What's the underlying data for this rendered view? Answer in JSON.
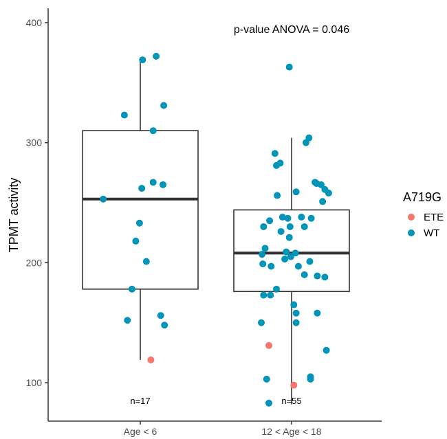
{
  "chart_data": {
    "type": "boxplot",
    "title": "",
    "ylabel": "TPMT activity",
    "xlabel": "",
    "ylim": [
      68,
      412
    ],
    "yticks": [
      100,
      200,
      300,
      400
    ],
    "categories": [
      "Age < 6",
      "12 < Age < 18"
    ],
    "annotation": "p-value ANOVA = 0.046",
    "group_counts": [
      "n=17",
      "n=55"
    ],
    "boxes": [
      {
        "category": "Age < 6",
        "whisker_low": 119,
        "q1": 178,
        "median": 253,
        "q3": 310,
        "whisker_high": 371
      },
      {
        "category": "12 < Age < 18",
        "whisker_low": 82,
        "q1": 176,
        "median": 208,
        "q3": 244,
        "whisker_high": 304
      }
    ],
    "legend": {
      "title": "A719G",
      "position": "right",
      "entries": [
        {
          "label": "ETE",
          "color": "#F8766D"
        },
        {
          "label": "WT",
          "color": "#0094B8"
        }
      ]
    },
    "series": [
      {
        "name": "ETE",
        "points": [
          {
            "x": 0.14,
            "y": 119
          },
          {
            "x": 1.7,
            "y": 131
          },
          {
            "x": 2.03,
            "y": 98
          }
        ]
      },
      {
        "name": "WT",
        "points": [
          {
            "x": 0.03,
            "y": 369
          },
          {
            "x": 0.21,
            "y": 372
          },
          {
            "x": 0.31,
            "y": 331
          },
          {
            "x": -0.21,
            "y": 323
          },
          {
            "x": 0.17,
            "y": 310
          },
          {
            "x": -0.49,
            "y": 253
          },
          {
            "x": 0.17,
            "y": 267
          },
          {
            "x": 0.02,
            "y": 262
          },
          {
            "x": 0.3,
            "y": 265
          },
          {
            "x": -0.01,
            "y": 233
          },
          {
            "x": -0.06,
            "y": 218
          },
          {
            "x": 0.08,
            "y": 201
          },
          {
            "x": -0.11,
            "y": 178
          },
          {
            "x": -0.17,
            "y": 152
          },
          {
            "x": 0.27,
            "y": 156
          },
          {
            "x": 0.32,
            "y": 148
          },
          {
            "x": 1.97,
            "y": 363
          },
          {
            "x": 2.23,
            "y": 304
          },
          {
            "x": 2.19,
            "y": 300
          },
          {
            "x": 1.78,
            "y": 291
          },
          {
            "x": 1.8,
            "y": 281
          },
          {
            "x": 1.85,
            "y": 283
          },
          {
            "x": 2.31,
            "y": 267
          },
          {
            "x": 2.33,
            "y": 266
          },
          {
            "x": 2.39,
            "y": 265
          },
          {
            "x": 2.44,
            "y": 261
          },
          {
            "x": 2.49,
            "y": 258
          },
          {
            "x": 2.41,
            "y": 251
          },
          {
            "x": 1.81,
            "y": 256
          },
          {
            "x": 2.06,
            "y": 259
          },
          {
            "x": 1.63,
            "y": 230
          },
          {
            "x": 1.71,
            "y": 235
          },
          {
            "x": 1.88,
            "y": 238
          },
          {
            "x": 1.95,
            "y": 237
          },
          {
            "x": 2.13,
            "y": 238
          },
          {
            "x": 2.26,
            "y": 237
          },
          {
            "x": 1.86,
            "y": 226
          },
          {
            "x": 1.98,
            "y": 230
          },
          {
            "x": 2.17,
            "y": 230
          },
          {
            "x": 1.97,
            "y": 221
          },
          {
            "x": 1.65,
            "y": 212
          },
          {
            "x": 1.61,
            "y": 207
          },
          {
            "x": 1.93,
            "y": 209
          },
          {
            "x": 2.05,
            "y": 208
          },
          {
            "x": 1.99,
            "y": 205
          },
          {
            "x": 1.91,
            "y": 203
          },
          {
            "x": 1.62,
            "y": 199
          },
          {
            "x": 1.73,
            "y": 197
          },
          {
            "x": 2.09,
            "y": 197
          },
          {
            "x": 2.24,
            "y": 201
          },
          {
            "x": 2.17,
            "y": 190
          },
          {
            "x": 2.34,
            "y": 189
          },
          {
            "x": 2.44,
            "y": 188
          },
          {
            "x": 1.8,
            "y": 178
          },
          {
            "x": 1.63,
            "y": 173
          },
          {
            "x": 1.72,
            "y": 173
          },
          {
            "x": 2.03,
            "y": 165
          },
          {
            "x": 2.06,
            "y": 158
          },
          {
            "x": 2.34,
            "y": 158
          },
          {
            "x": 1.6,
            "y": 150
          },
          {
            "x": 2.06,
            "y": 150
          },
          {
            "x": 2.46,
            "y": 127
          },
          {
            "x": 1.67,
            "y": 103
          },
          {
            "x": 2.25,
            "y": 105
          },
          {
            "x": 2.25,
            "y": 103
          },
          {
            "x": 1.7,
            "y": 83
          }
        ]
      }
    ]
  }
}
